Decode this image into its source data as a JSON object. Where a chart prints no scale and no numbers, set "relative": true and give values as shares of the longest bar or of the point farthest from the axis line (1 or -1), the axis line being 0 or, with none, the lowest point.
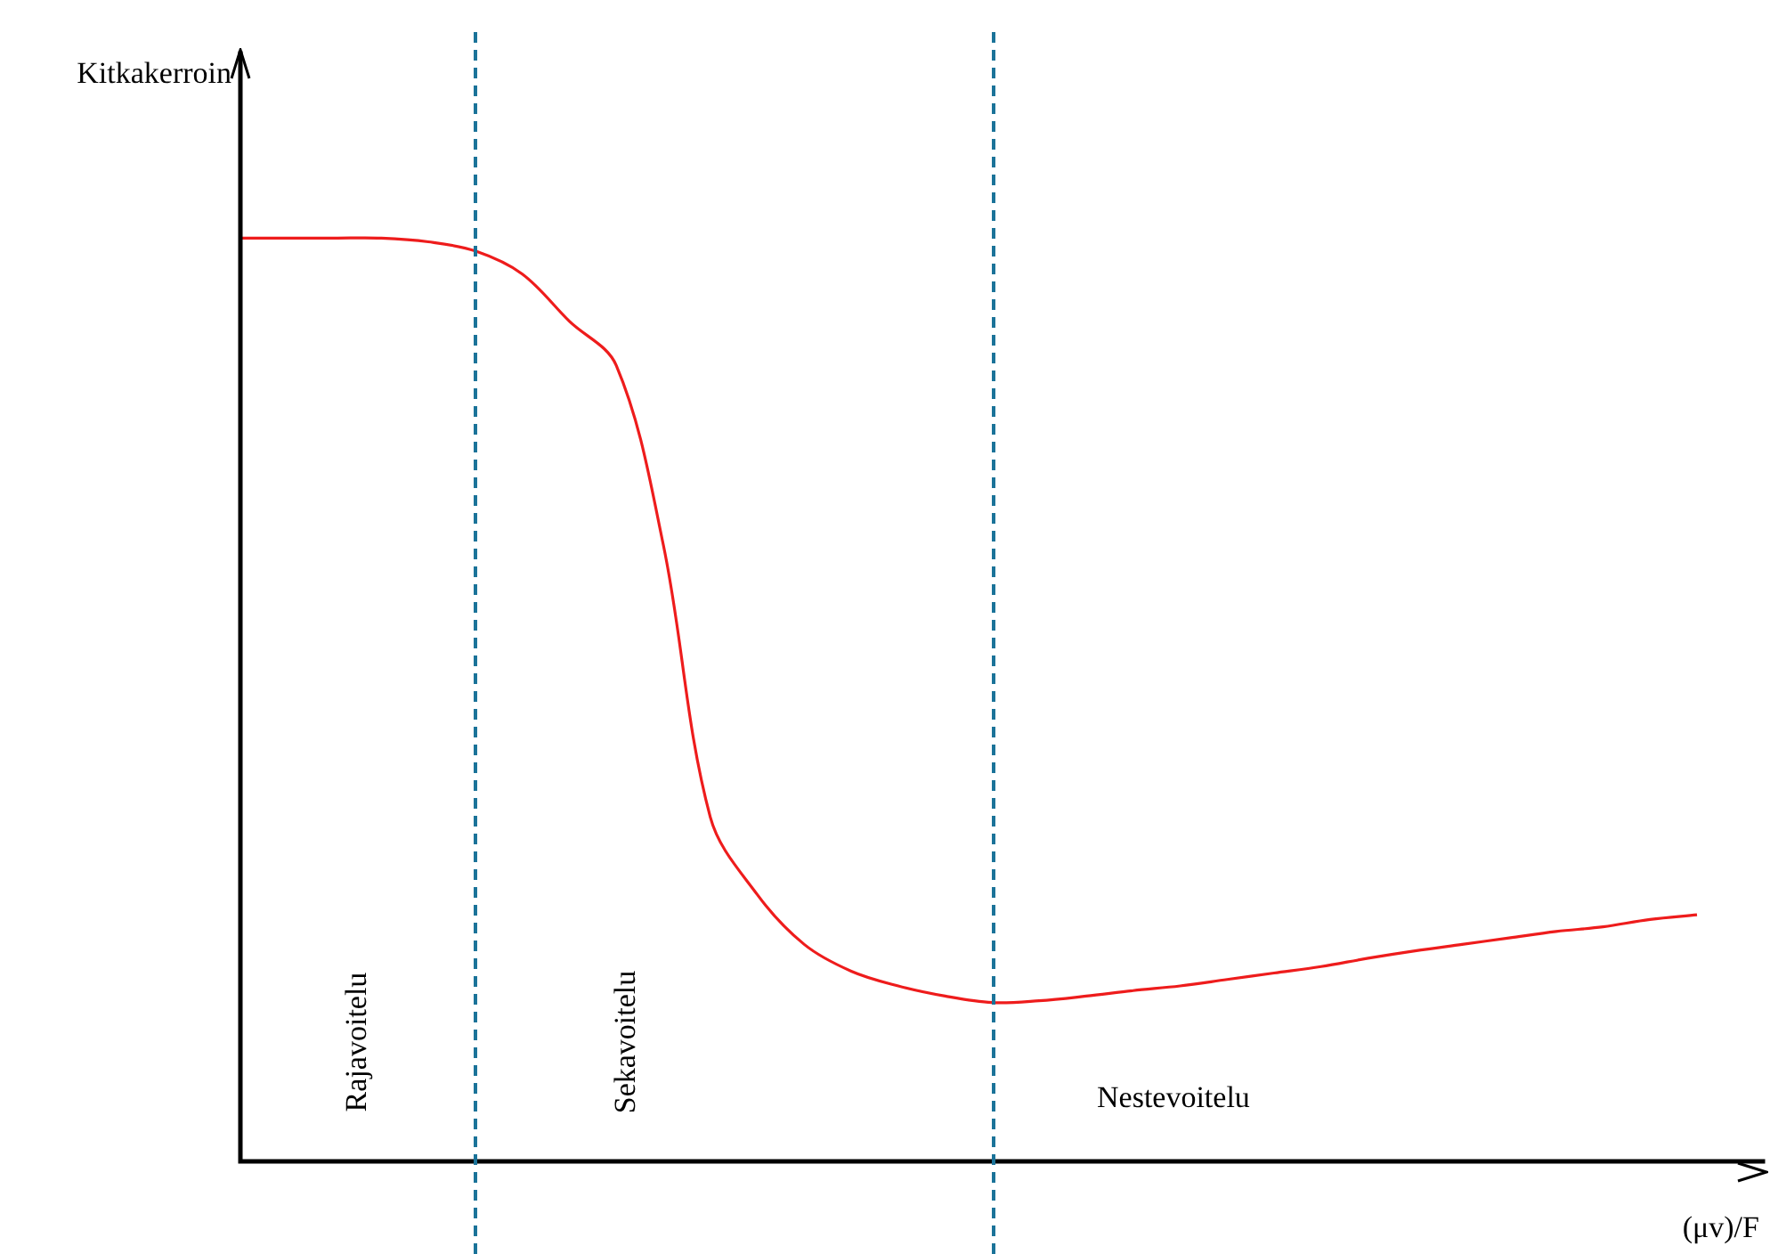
{
  "chart_data": {
    "type": "line",
    "relative": true,
    "xlabel": "(μv)/F",
    "ylabel": "Kitkakerroin",
    "color": "#ee1c1c",
    "categories": [
      null,
      null,
      null,
      null,
      null,
      null,
      null,
      null,
      null,
      null,
      null,
      null,
      null,
      null,
      null,
      null,
      null,
      null,
      null,
      null,
      null,
      null,
      null,
      null,
      null,
      null,
      null,
      null,
      null,
      null,
      null,
      null
    ],
    "values": [
      1,
      1,
      1,
      1,
      0.996,
      0.986,
      0.961,
      0.91,
      0.862,
      0.668,
      0.373,
      0.289,
      0.235,
      0.206,
      0.19,
      0.179,
      0.172,
      0.174,
      0.179,
      0.185,
      0.19,
      0.197,
      0.204,
      0.211,
      0.22,
      0.228,
      0.235,
      0.242,
      0.249,
      0.254,
      0.262,
      0.267
    ],
    "annotations": [
      "Rajavoitelu",
      "Sekavoitelu",
      "Nestevoitelu"
    ]
  }
}
